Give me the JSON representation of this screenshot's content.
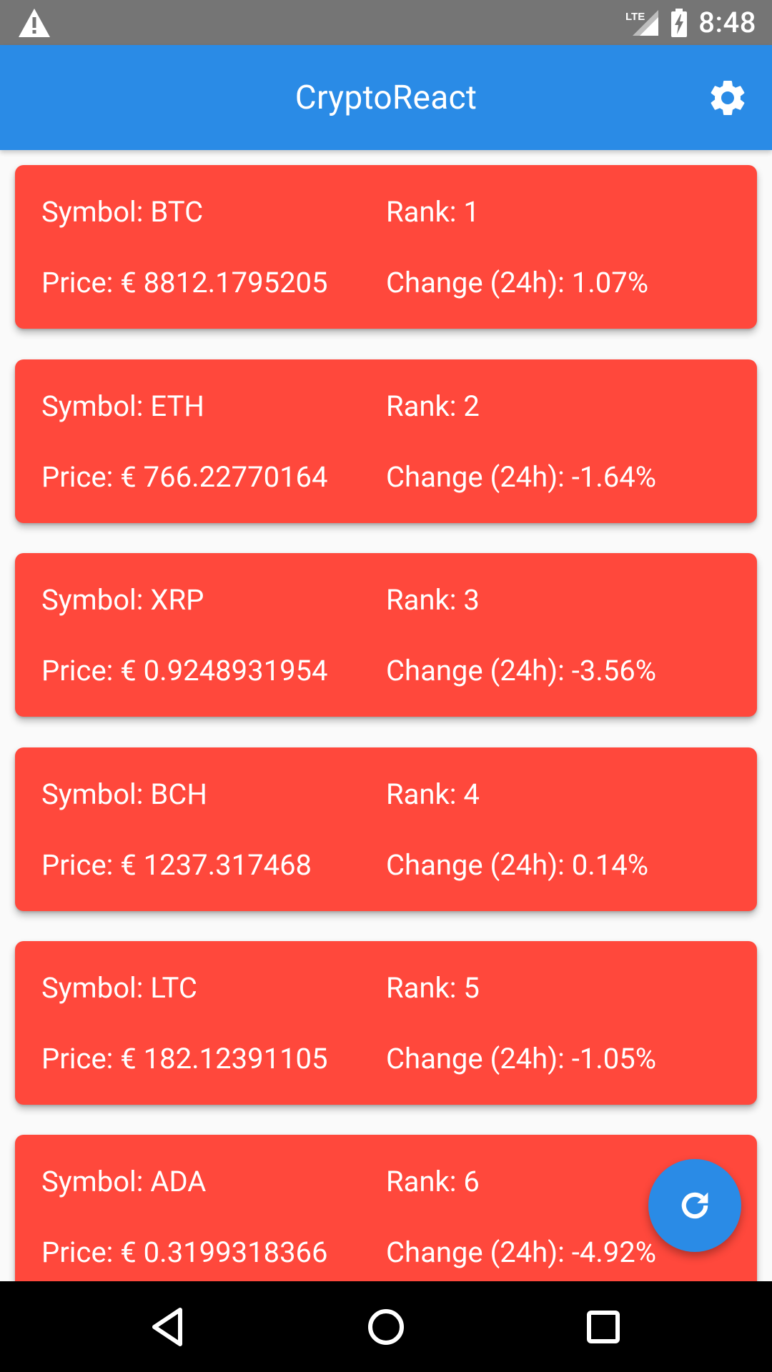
{
  "status_bar": {
    "time": "8:48",
    "network": "LTE",
    "icons": [
      "warning-icon",
      "signal-icon",
      "battery-charging-icon"
    ]
  },
  "app_bar": {
    "title": "CryptoReact",
    "settings_icon": "gear-icon"
  },
  "coins": [
    {
      "symbol": "Symbol: BTC",
      "rank": "Rank: 1",
      "price": "Price: € 8812.1795205",
      "change": "Change (24h): 1.07%"
    },
    {
      "symbol": "Symbol: ETH",
      "rank": "Rank: 2",
      "price": "Price: € 766.22770164",
      "change": "Change (24h): -1.64%"
    },
    {
      "symbol": "Symbol: XRP",
      "rank": "Rank: 3",
      "price": "Price: € 0.9248931954",
      "change": "Change (24h): -3.56%"
    },
    {
      "symbol": "Symbol: BCH",
      "rank": "Rank: 4",
      "price": "Price: € 1237.317468",
      "change": "Change (24h): 0.14%"
    },
    {
      "symbol": "Symbol: LTC",
      "rank": "Rank: 5",
      "price": "Price: € 182.12391105",
      "change": "Change (24h): -1.05%"
    },
    {
      "symbol": "Symbol: ADA",
      "rank": "Rank: 6",
      "price": "Price: € 0.3199318366",
      "change": "Change (24h): -4.92%"
    }
  ],
  "fab": {
    "icon": "refresh-icon"
  },
  "nav_bar": {
    "icons": [
      "back-icon",
      "home-icon",
      "recent-apps-icon"
    ]
  },
  "colors": {
    "status_bar": "#757575",
    "app_bar": "#2a8be6",
    "card": "#ff483c",
    "fab": "#2a8be6",
    "nav_bar": "#000000"
  }
}
